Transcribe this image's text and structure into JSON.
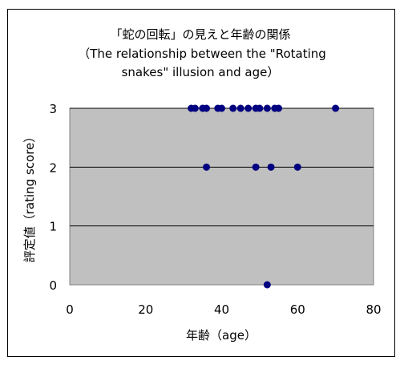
{
  "chart_data": {
    "type": "scatter",
    "title": "「蛇の回転」の見えと年齢の関係",
    "subtitle_line1": "（The relationship between the \"Rotating",
    "subtitle_line2": "snakes\" illusion and age）",
    "xlabel": "年齢（age）",
    "ylabel": "評定値（rating score）",
    "xlim": [
      0,
      80
    ],
    "ylim": [
      0,
      3
    ],
    "xticks": [
      "0",
      "20",
      "40",
      "60",
      "80"
    ],
    "yticks": [
      "0",
      "1",
      "2",
      "3"
    ],
    "grid": "horizontal",
    "legend": "none",
    "plot_background": "#c0c0c0",
    "marker_color": "#000080",
    "points": [
      {
        "x": 32,
        "y": 3
      },
      {
        "x": 33,
        "y": 3
      },
      {
        "x": 35,
        "y": 3
      },
      {
        "x": 36,
        "y": 3
      },
      {
        "x": 39,
        "y": 3
      },
      {
        "x": 40,
        "y": 3
      },
      {
        "x": 43,
        "y": 3
      },
      {
        "x": 45,
        "y": 3
      },
      {
        "x": 47,
        "y": 3
      },
      {
        "x": 49,
        "y": 3
      },
      {
        "x": 50,
        "y": 3
      },
      {
        "x": 52,
        "y": 3
      },
      {
        "x": 54,
        "y": 3
      },
      {
        "x": 55,
        "y": 3
      },
      {
        "x": 70,
        "y": 3
      },
      {
        "x": 36,
        "y": 2
      },
      {
        "x": 49,
        "y": 2
      },
      {
        "x": 53,
        "y": 2
      },
      {
        "x": 60,
        "y": 2
      },
      {
        "x": 52,
        "y": 0
      }
    ]
  }
}
